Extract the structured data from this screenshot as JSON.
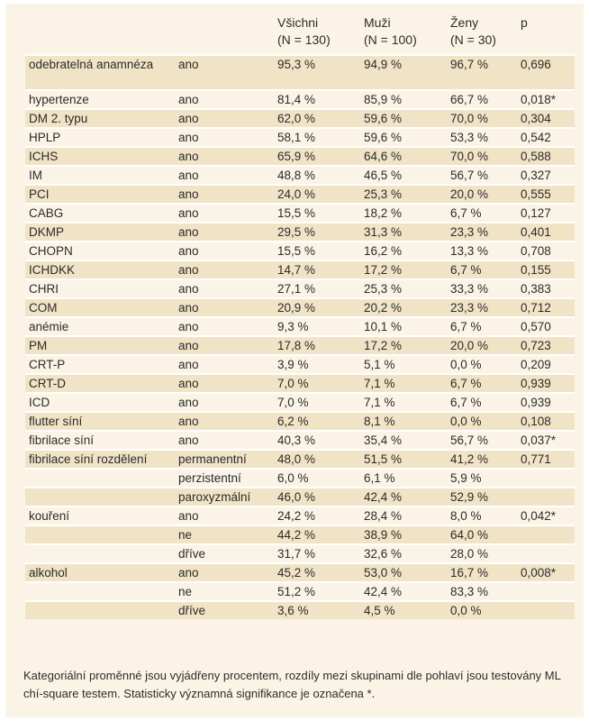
{
  "header": {
    "col_all": "Všichni",
    "col_all_n": "(N = 130)",
    "col_men": "Muži",
    "col_men_n": "(N = 100)",
    "col_women": "Ženy",
    "col_women_n": "(N = 30)",
    "col_p": "p"
  },
  "rows": [
    {
      "variable": "odebratelná anamnéza",
      "category": "ano",
      "all": "95,3 %",
      "men": "94,9 %",
      "women": "96,7 %",
      "p": "0,696"
    },
    {
      "variable": "hypertenze",
      "category": "ano",
      "all": "81,4 %",
      "men": "85,9 %",
      "women": "66,7 %",
      "p": "0,018*"
    },
    {
      "variable": "DM 2. typu",
      "category": "ano",
      "all": "62,0 %",
      "men": "59,6 %",
      "women": "70,0 %",
      "p": "0,304"
    },
    {
      "variable": "HPLP",
      "category": "ano",
      "all": "58,1 %",
      "men": "59,6 %",
      "women": "53,3 %",
      "p": "0,542"
    },
    {
      "variable": "ICHS",
      "category": "ano",
      "all": "65,9 %",
      "men": "64,6 %",
      "women": "70,0 %",
      "p": "0,588"
    },
    {
      "variable": "IM",
      "category": "ano",
      "all": "48,8 %",
      "men": "46,5 %",
      "women": "56,7 %",
      "p": "0,327"
    },
    {
      "variable": "PCI",
      "category": "ano",
      "all": "24,0 %",
      "men": "25,3 %",
      "women": "20,0 %",
      "p": "0,555"
    },
    {
      "variable": "CABG",
      "category": "ano",
      "all": "15,5 %",
      "men": "18,2 %",
      "women": "6,7 %",
      "p": "0,127"
    },
    {
      "variable": "DKMP",
      "category": "ano",
      "all": "29,5 %",
      "men": "31,3 %",
      "women": "23,3 %",
      "p": "0,401"
    },
    {
      "variable": "CHOPN",
      "category": "ano",
      "all": "15,5 %",
      "men": "16,2 %",
      "women": "13,3 %",
      "p": "0,708"
    },
    {
      "variable": "ICHDKK",
      "category": "ano",
      "all": "14,7 %",
      "men": "17,2 %",
      "women": "6,7 %",
      "p": "0,155"
    },
    {
      "variable": "CHRI",
      "category": "ano",
      "all": "27,1 %",
      "men": "25,3 %",
      "women": "33,3 %",
      "p": "0,383"
    },
    {
      "variable": "COM",
      "category": "ano",
      "all": "20,9 %",
      "men": "20,2 %",
      "women": "23,3 %",
      "p": "0,712"
    },
    {
      "variable": "anémie",
      "category": "ano",
      "all": "9,3 %",
      "men": "10,1 %",
      "women": "6,7 %",
      "p": "0,570"
    },
    {
      "variable": "PM",
      "category": "ano",
      "all": "17,8 %",
      "men": "17,2 %",
      "women": "20,0 %",
      "p": "0,723"
    },
    {
      "variable": "CRT-P",
      "category": "ano",
      "all": "3,9 %",
      "men": "5,1 %",
      "women": "0,0 %",
      "p": "0,209"
    },
    {
      "variable": "CRT-D",
      "category": "ano",
      "all": "7,0 %",
      "men": "7,1 %",
      "women": "6,7 %",
      "p": "0,939"
    },
    {
      "variable": "ICD",
      "category": "ano",
      "all": "7,0 %",
      "men": "7,1 %",
      "women": "6,7 %",
      "p": "0,939"
    },
    {
      "variable": "flutter síní",
      "category": "ano",
      "all": "6,2 %",
      "men": "8,1 %",
      "women": "0,0 %",
      "p": "0,108"
    },
    {
      "variable": "fibrilace síní",
      "category": "ano",
      "all": "40,3 %",
      "men": "35,4 %",
      "women": "56,7 %",
      "p": "0,037*"
    },
    {
      "variable": "fibrilace síní rozdělení",
      "category": "permanentní",
      "all": "48,0 %",
      "men": "51,5 %",
      "women": "41,2 %",
      "p": "0,771"
    },
    {
      "variable": "",
      "category": "perzistentní",
      "all": "6,0 %",
      "men": "6,1 %",
      "women": "5,9 %",
      "p": ""
    },
    {
      "variable": "",
      "category": "paroxyzmální",
      "all": "46,0 %",
      "men": "42,4 %",
      "women": "52,9 %",
      "p": ""
    },
    {
      "variable": "kouření",
      "category": "ano",
      "all": "24,2 %",
      "men": "28,4 %",
      "women": "8,0 %",
      "p": "0,042*"
    },
    {
      "variable": "",
      "category": "ne",
      "all": "44,2 %",
      "men": "38,9 %",
      "women": "64,0 %",
      "p": ""
    },
    {
      "variable": "",
      "category": "dříve",
      "all": "31,7 %",
      "men": "32,6 %",
      "women": "28,0 %",
      "p": ""
    },
    {
      "variable": "alkohol",
      "category": "ano",
      "all": "45,2 %",
      "men": "53,0 %",
      "women": "16,7 %",
      "p": "0,008*"
    },
    {
      "variable": "",
      "category": "ne",
      "all": "51,2 %",
      "men": "42,4 %",
      "women": "83,3 %",
      "p": ""
    },
    {
      "variable": "",
      "category": "dříve",
      "all": "3,6 %",
      "men": "4,5 %",
      "women": "0,0 %",
      "p": ""
    }
  ],
  "footnote": "Kategoriální proměnné jsou vyjádřeny procentem, rozdíly mezi skupinami dle pohlaví jsou testovány ML chí-square testem. Statisticky významná signifikance je označena *.",
  "colors": {
    "panel_bg": "#fbf4e6",
    "row_shade": "#f1e3c6",
    "separator": "#ffffff"
  }
}
